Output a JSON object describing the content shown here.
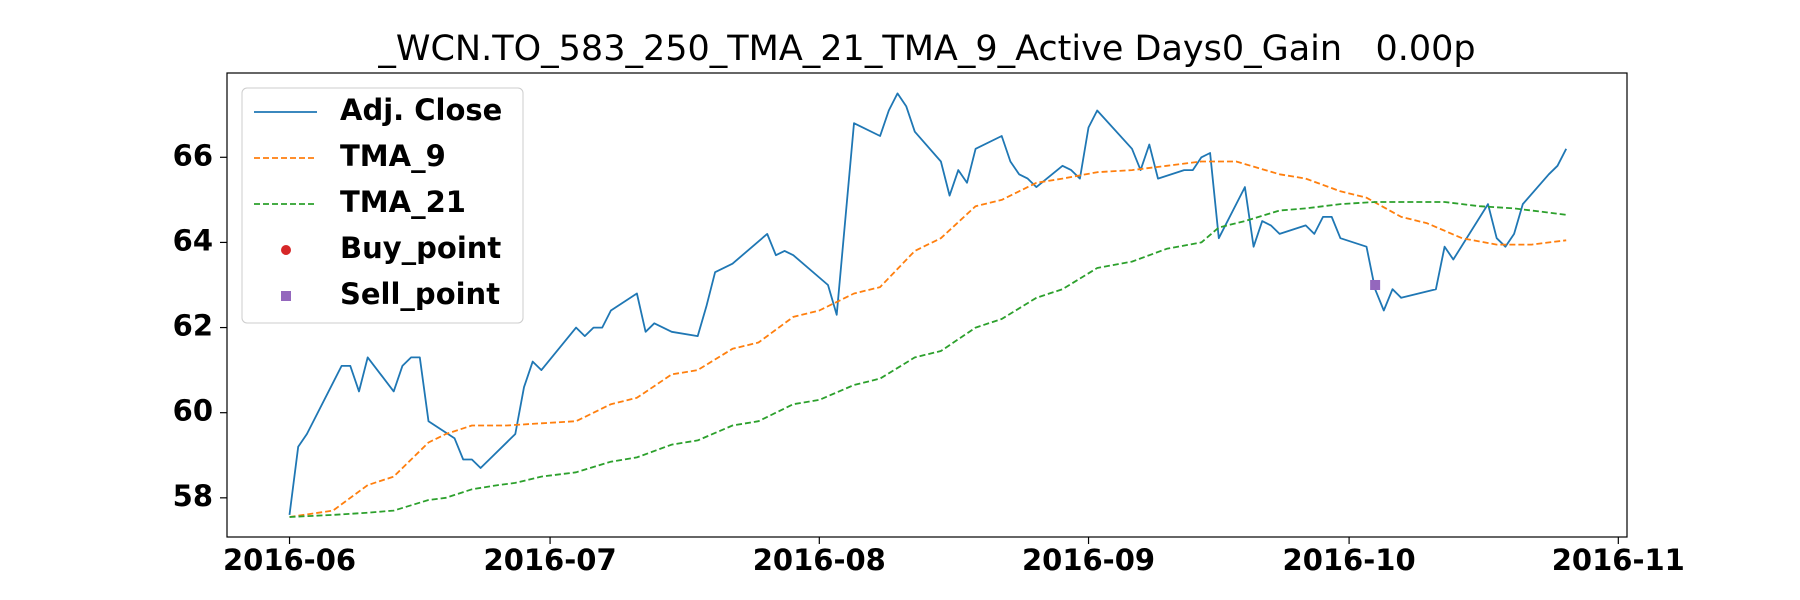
{
  "chart_data": {
    "type": "line",
    "title": "_WCN.TO_583_250_TMA_21_TMA_9_Active Days0_Gain   0.00p",
    "xlim": [
      145.8,
      307
    ],
    "ylim": [
      57.08,
      67.98
    ],
    "xticks": [
      {
        "value": 153,
        "label": "2016-06"
      },
      {
        "value": 183,
        "label": "2016-07"
      },
      {
        "value": 214,
        "label": "2016-08"
      },
      {
        "value": 245,
        "label": "2016-09"
      },
      {
        "value": 275,
        "label": "2016-10"
      },
      {
        "value": 306,
        "label": "2016-11"
      }
    ],
    "yticks": [
      58,
      60,
      62,
      64,
      66
    ],
    "legend": "upper left",
    "series": [
      {
        "name": "Adj. Close",
        "color": "#1f77b4",
        "style": "solid",
        "x": [
          153,
          154,
          155,
          159,
          160,
          161,
          162,
          165,
          166,
          167,
          168,
          169,
          172,
          173,
          174,
          175,
          176,
          179,
          180,
          181,
          182,
          186,
          187,
          188,
          189,
          190,
          193,
          194,
          195,
          196,
          197,
          200,
          201,
          202,
          204,
          208,
          209,
          210,
          211,
          215,
          216,
          218,
          221,
          222,
          223,
          224,
          225,
          228,
          229,
          230,
          231,
          232,
          235,
          236,
          237,
          238,
          239,
          242,
          243,
          244,
          245,
          246,
          250,
          251,
          252,
          253,
          256,
          257,
          258,
          259,
          260,
          263,
          264,
          265,
          266,
          267,
          270,
          271,
          272,
          273,
          274,
          277,
          278,
          279,
          280,
          281,
          285,
          286,
          287,
          291,
          292,
          293,
          294,
          295,
          298,
          299,
          300
        ],
        "values": [
          57.6,
          59.2,
          59.5,
          61.1,
          61.1,
          60.5,
          61.3,
          60.5,
          61.1,
          61.3,
          61.3,
          59.8,
          59.4,
          58.9,
          58.9,
          58.7,
          58.9,
          59.5,
          60.6,
          61.2,
          61.0,
          62.0,
          61.8,
          62.0,
          62.0,
          62.4,
          62.8,
          61.9,
          62.1,
          62.0,
          61.9,
          61.8,
          62.5,
          63.3,
          63.5,
          64.2,
          63.7,
          63.8,
          63.7,
          63.0,
          62.3,
          66.8,
          66.5,
          67.1,
          67.5,
          67.2,
          66.6,
          65.9,
          65.1,
          65.7,
          65.4,
          66.2,
          66.5,
          65.9,
          65.6,
          65.5,
          65.3,
          65.8,
          65.7,
          65.5,
          66.7,
          67.1,
          66.2,
          65.7,
          66.3,
          65.5,
          65.7,
          65.7,
          66.0,
          66.1,
          64.1,
          65.3,
          63.9,
          64.5,
          64.4,
          64.2,
          64.4,
          64.2,
          64.6,
          64.6,
          64.1,
          63.9,
          62.9,
          62.4,
          62.9,
          62.7,
          62.9,
          63.9,
          63.6,
          64.9,
          64.1,
          63.9,
          64.2,
          64.9,
          65.6,
          65.8,
          66.2
        ]
      },
      {
        "name": "TMA_9",
        "color": "#ff7f0e",
        "style": "dashed",
        "x": [
          153,
          158,
          162,
          165,
          169,
          171,
          174,
          178,
          182,
          186,
          190,
          193,
          197,
          200,
          204,
          207,
          211,
          214,
          218,
          221,
          225,
          228,
          232,
          235,
          239,
          242,
          246,
          250,
          254,
          258,
          262,
          267,
          270,
          274,
          277,
          281,
          284,
          288,
          292,
          296,
          300
        ],
        "values": [
          57.55,
          57.7,
          58.3,
          58.5,
          59.3,
          59.5,
          59.7,
          59.7,
          59.75,
          59.8,
          60.2,
          60.35,
          60.9,
          61.0,
          61.5,
          61.65,
          62.25,
          62.4,
          62.8,
          62.95,
          63.8,
          64.1,
          64.85,
          65.0,
          65.4,
          65.5,
          65.65,
          65.7,
          65.8,
          65.9,
          65.9,
          65.6,
          65.5,
          65.2,
          65.05,
          64.6,
          64.45,
          64.1,
          63.95,
          63.95,
          64.05
        ]
      },
      {
        "name": "TMA_21",
        "color": "#2ca02c",
        "style": "dashed",
        "x": [
          153,
          158,
          162,
          165,
          169,
          171,
          174,
          177,
          179,
          182,
          186,
          190,
          193,
          197,
          200,
          204,
          207,
          211,
          214,
          218,
          221,
          225,
          228,
          232,
          235,
          239,
          242,
          246,
          250,
          254,
          258,
          260,
          263,
          267,
          270,
          274,
          278,
          282,
          286,
          290,
          294,
          298,
          300
        ],
        "values": [
          57.55,
          57.6,
          57.65,
          57.7,
          57.95,
          58.0,
          58.2,
          58.3,
          58.35,
          58.5,
          58.6,
          58.85,
          58.95,
          59.25,
          59.35,
          59.7,
          59.8,
          60.2,
          60.3,
          60.65,
          60.8,
          61.3,
          61.45,
          62.0,
          62.2,
          62.7,
          62.9,
          63.4,
          63.55,
          63.85,
          64.0,
          64.35,
          64.5,
          64.75,
          64.8,
          64.9,
          64.95,
          64.95,
          64.95,
          64.85,
          64.8,
          64.7,
          64.65
        ]
      },
      {
        "name": "Buy_point",
        "color": "#d62728",
        "style": "none",
        "marker": "circle",
        "x": [],
        "values": []
      },
      {
        "name": "Sell_point",
        "color": "#9467bd",
        "style": "none",
        "marker": "square",
        "x": [
          278
        ],
        "values": [
          63.0
        ]
      }
    ]
  }
}
